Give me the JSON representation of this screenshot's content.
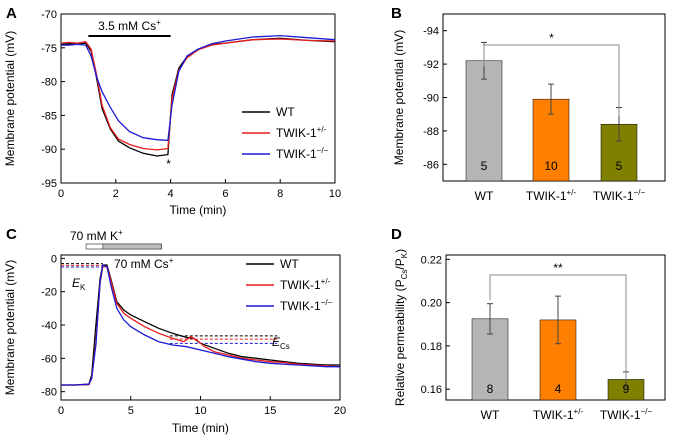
{
  "chart_data": [
    {
      "panel": "A",
      "type": "line",
      "xlabel": "Time (min)",
      "ylabel": "Membrane potential (mV)",
      "xlim": [
        0,
        10
      ],
      "ylim": [
        -95,
        -70
      ],
      "xticks": [
        0,
        2,
        4,
        6,
        8,
        10
      ],
      "yticks": [
        -70,
        -75,
        -80,
        -85,
        -90,
        -95
      ],
      "annotation": {
        "text": "3.5 mM Cs",
        "sup": "+",
        "from": 1.0,
        "to": 4.0
      },
      "asterisk": "*",
      "series": [
        {
          "name": "WT",
          "sup": "",
          "color": "#000000",
          "x": [
            0,
            0.3,
            0.6,
            0.9,
            1.1,
            1.3,
            1.5,
            1.8,
            2.1,
            2.5,
            3.0,
            3.5,
            3.9,
            4.05,
            4.3,
            4.6,
            5.0,
            5.5,
            6.0,
            7.0,
            8.0,
            9.0,
            10.0
          ],
          "y": [
            -74.5,
            -74.4,
            -74.5,
            -74.3,
            -75.5,
            -79.5,
            -84,
            -87,
            -88.8,
            -89.8,
            -90.6,
            -91,
            -90.8,
            -82,
            -78,
            -76.3,
            -75.2,
            -74.5,
            -74.3,
            -73.8,
            -73.6,
            -73.9,
            -74.1
          ]
        },
        {
          "name": "TWIK-1",
          "sup": "+/-",
          "color": "#e81c1c",
          "x": [
            0,
            0.3,
            0.6,
            0.9,
            1.1,
            1.3,
            1.5,
            1.8,
            2.1,
            2.5,
            3.0,
            3.5,
            3.9,
            4.05,
            4.3,
            4.6,
            5.0,
            5.5,
            6.0,
            7.0,
            8.0,
            9.0,
            10.0
          ],
          "y": [
            -74.3,
            -74.2,
            -74.3,
            -74.1,
            -75.2,
            -79,
            -83.5,
            -86.8,
            -88.5,
            -89.3,
            -89.9,
            -90.1,
            -89.9,
            -82.5,
            -78.3,
            -76.5,
            -75.3,
            -74.6,
            -74.3,
            -73.8,
            -73.7,
            -73.9,
            -74.0
          ]
        },
        {
          "name": "TWIK-1",
          "sup": "−/−",
          "color": "#1c1cd4",
          "x": [
            0,
            0.3,
            0.6,
            0.9,
            1.1,
            1.3,
            1.5,
            1.8,
            2.1,
            2.5,
            3.0,
            3.5,
            3.9,
            4.05,
            4.3,
            4.6,
            5.0,
            5.5,
            6.0,
            7.0,
            8.0,
            9.0,
            10.0
          ],
          "y": [
            -74.6,
            -74.6,
            -74.5,
            -74.6,
            -76.2,
            -79.3,
            -81.5,
            -83.8,
            -85.8,
            -87.4,
            -88.3,
            -88.6,
            -88.7,
            -83.5,
            -78.5,
            -76.2,
            -75.2,
            -74.4,
            -74.0,
            -73.4,
            -73.2,
            -73.5,
            -73.8
          ]
        }
      ]
    },
    {
      "panel": "B",
      "type": "bar",
      "ylabel": "Membrane potential (mV)",
      "ylim": [
        -85,
        -95
      ],
      "yticks": [
        -86,
        -88,
        -90,
        -92,
        -94
      ],
      "bars": [
        {
          "label": "WT",
          "sup": "",
          "value": -92.2,
          "err": 1.1,
          "n": "5",
          "color": "#b5b5b5"
        },
        {
          "label": "TWIK-1",
          "sup": "+/-",
          "value": -89.9,
          "err": 0.9,
          "n": "10",
          "color": "#ff7f00"
        },
        {
          "label": "TWIK-1",
          "sup": "−/−",
          "value": -88.4,
          "err": 1.0,
          "n": "5",
          "color": "#808000"
        }
      ],
      "significance": {
        "label": "*",
        "between": [
          0,
          2
        ]
      }
    },
    {
      "panel": "C",
      "type": "line",
      "xlabel": "Time (min)",
      "ylabel": "Membrane potential (mV)",
      "xlim": [
        0,
        20
      ],
      "ylim": [
        -85,
        2
      ],
      "xticks": [
        0,
        5,
        10,
        15,
        20
      ],
      "yticks": [
        0,
        -20,
        -40,
        -60,
        -80
      ],
      "annotations": [
        {
          "text": "70 mM K",
          "sup": "+",
          "from": 1.8,
          "to": 3.0
        },
        {
          "text": "70 mM Cs",
          "sup": "+",
          "from": 3.0,
          "to": 7.2
        }
      ],
      "ek_label": "E",
      "ek_sub": "K",
      "ecs_label": "E",
      "ecs_sub": "Cs",
      "ek_lines": [
        -3.2,
        -4.2,
        -5.2
      ],
      "ecs_lines": [
        -46.5,
        -48.5,
        -51.0
      ],
      "series": [
        {
          "name": "WT",
          "sup": "",
          "color": "#000000",
          "x": [
            0,
            1,
            2,
            2.2,
            2.5,
            2.8,
            3.0,
            3.3,
            3.6,
            4.0,
            4.5,
            5.0,
            6,
            7,
            8,
            9,
            9.5,
            10,
            11,
            12,
            13,
            14,
            15,
            16,
            17,
            18,
            19,
            20
          ],
          "y": [
            -76,
            -76,
            -75.5,
            -70,
            -40,
            -12,
            -4,
            -4,
            -13,
            -26,
            -31,
            -34,
            -38,
            -42,
            -45,
            -47.5,
            -48,
            -51,
            -54,
            -57,
            -59,
            -60,
            -61,
            -62,
            -63,
            -63.5,
            -64,
            -64
          ]
        },
        {
          "name": "TWIK-1",
          "sup": "+/-",
          "color": "#e81c1c",
          "x": [
            0,
            1,
            2,
            2.2,
            2.5,
            2.8,
            3.0,
            3.3,
            3.6,
            4.0,
            4.5,
            5.0,
            6,
            7,
            8,
            8.8,
            9.3,
            9.8,
            10.3,
            11,
            12,
            13,
            14,
            15,
            16,
            17,
            18,
            19,
            20
          ],
          "y": [
            -76,
            -76,
            -75.8,
            -72,
            -50,
            -15,
            -5,
            -5,
            -14,
            -27,
            -33,
            -36,
            -41,
            -45,
            -48,
            -50,
            -47,
            -49.5,
            -53,
            -56,
            -58,
            -60,
            -61,
            -62,
            -62.5,
            -63.5,
            -64,
            -64.5,
            -65
          ]
        },
        {
          "name": "TWIK-1",
          "sup": "−/−",
          "color": "#1c1cd4",
          "x": [
            0,
            1,
            2,
            2.2,
            2.5,
            2.8,
            3.0,
            3.3,
            3.6,
            4.0,
            4.5,
            5.0,
            6,
            7,
            8,
            9,
            10,
            11,
            12,
            13,
            14,
            15,
            16,
            17,
            18,
            19,
            20
          ],
          "y": [
            -76,
            -76,
            -75.5,
            -72,
            -52,
            -14,
            -4,
            -5,
            -17,
            -30,
            -37,
            -41,
            -46,
            -50,
            -52,
            -53,
            -55,
            -57,
            -59,
            -60.5,
            -62,
            -63,
            -63.5,
            -64,
            -64.5,
            -65,
            -65
          ]
        }
      ]
    },
    {
      "panel": "D",
      "type": "bar",
      "ylabel": "Relative permeability (P",
      "ylabel_sub1": "Cs",
      "ylabel_mid": "/P",
      "ylabel_sub2": "K",
      "ylabel_end": ")",
      "ylim": [
        0.155,
        0.222
      ],
      "yticks": [
        0.16,
        0.18,
        0.2,
        0.22
      ],
      "ytick_labels": [
        "0.16",
        "0.18",
        "0.20",
        "0.22"
      ],
      "bars": [
        {
          "label": "WT",
          "sup": "",
          "value": 0.1925,
          "err": 0.007,
          "n": "8",
          "color": "#b5b5b5"
        },
        {
          "label": "TWIK-1",
          "sup": "+/-",
          "value": 0.192,
          "err": 0.011,
          "n": "4",
          "color": "#ff7f00"
        },
        {
          "label": "TWIK-1",
          "sup": "−/−",
          "value": 0.1645,
          "err": 0.0035,
          "n": "9",
          "color": "#808000"
        }
      ],
      "significance": {
        "label": "**",
        "between": [
          0,
          2
        ]
      }
    }
  ]
}
